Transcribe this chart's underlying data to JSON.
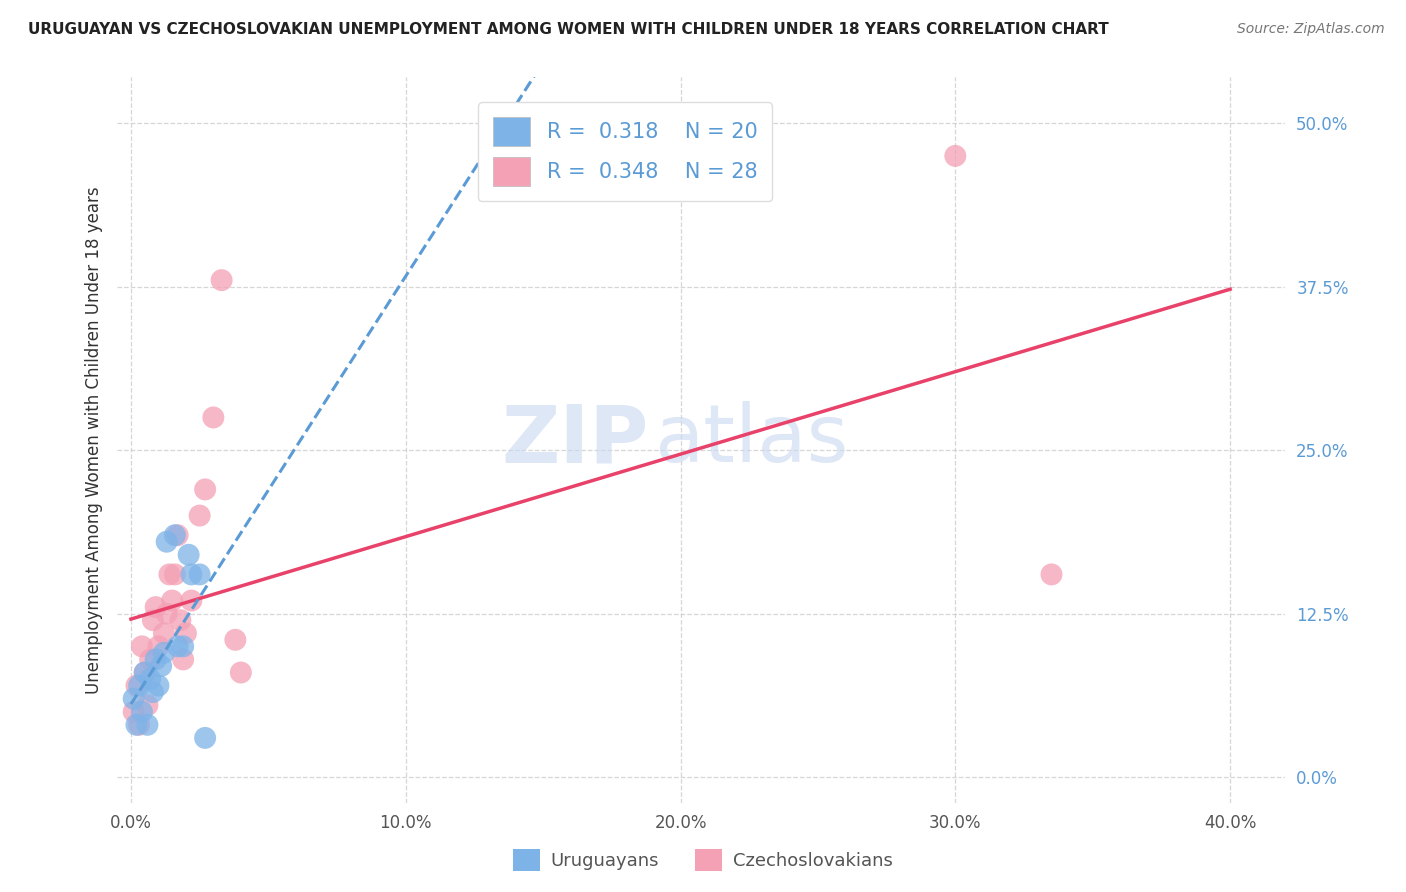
{
  "title": "URUGUAYAN VS CZECHOSLOVAKIAN UNEMPLOYMENT AMONG WOMEN WITH CHILDREN UNDER 18 YEARS CORRELATION CHART",
  "source": "Source: ZipAtlas.com",
  "ylabel": "Unemployment Among Women with Children Under 18 years",
  "xlabel_vals": [
    0.0,
    0.1,
    0.2,
    0.3,
    0.4
  ],
  "ylabel_vals": [
    0.0,
    0.125,
    0.25,
    0.375,
    0.5
  ],
  "xlim": [
    -0.005,
    0.42
  ],
  "ylim": [
    -0.02,
    0.535
  ],
  "uruguayan_x": [
    0.001,
    0.002,
    0.003,
    0.004,
    0.005,
    0.006,
    0.007,
    0.008,
    0.009,
    0.01,
    0.011,
    0.012,
    0.013,
    0.016,
    0.017,
    0.019,
    0.021,
    0.022,
    0.025,
    0.027
  ],
  "uruguayan_y": [
    0.06,
    0.04,
    0.07,
    0.05,
    0.08,
    0.04,
    0.075,
    0.065,
    0.09,
    0.07,
    0.085,
    0.095,
    0.18,
    0.185,
    0.1,
    0.1,
    0.17,
    0.155,
    0.155,
    0.03
  ],
  "czechoslovakian_x": [
    0.001,
    0.002,
    0.003,
    0.004,
    0.005,
    0.006,
    0.007,
    0.008,
    0.009,
    0.01,
    0.012,
    0.013,
    0.014,
    0.015,
    0.016,
    0.017,
    0.018,
    0.019,
    0.02,
    0.022,
    0.025,
    0.027,
    0.03,
    0.033,
    0.038,
    0.04,
    0.3,
    0.335
  ],
  "czechoslovakian_y": [
    0.05,
    0.07,
    0.04,
    0.1,
    0.08,
    0.055,
    0.09,
    0.12,
    0.13,
    0.1,
    0.11,
    0.125,
    0.155,
    0.135,
    0.155,
    0.185,
    0.12,
    0.09,
    0.11,
    0.135,
    0.2,
    0.22,
    0.275,
    0.38,
    0.105,
    0.08,
    0.475,
    0.155
  ],
  "uruguayan_color": "#7eb3e8",
  "czechoslovakian_color": "#f4a0b5",
  "uruguayan_R": 0.318,
  "uruguayan_N": 20,
  "czechoslovakian_R": 0.348,
  "czechoslovakian_N": 28,
  "trend_uru_color": "#5b9bd5",
  "trend_czk_color": "#e8426a",
  "watermark_zip": "ZIP",
  "watermark_atlas": "atlas",
  "watermark_color": "#c8d8f0",
  "legend_label_uruguayan": "Uruguayans",
  "legend_label_czechoslovakian": "Czechoslovakians",
  "trend_line_x_start": 0.0,
  "trend_line_x_end": 0.4
}
